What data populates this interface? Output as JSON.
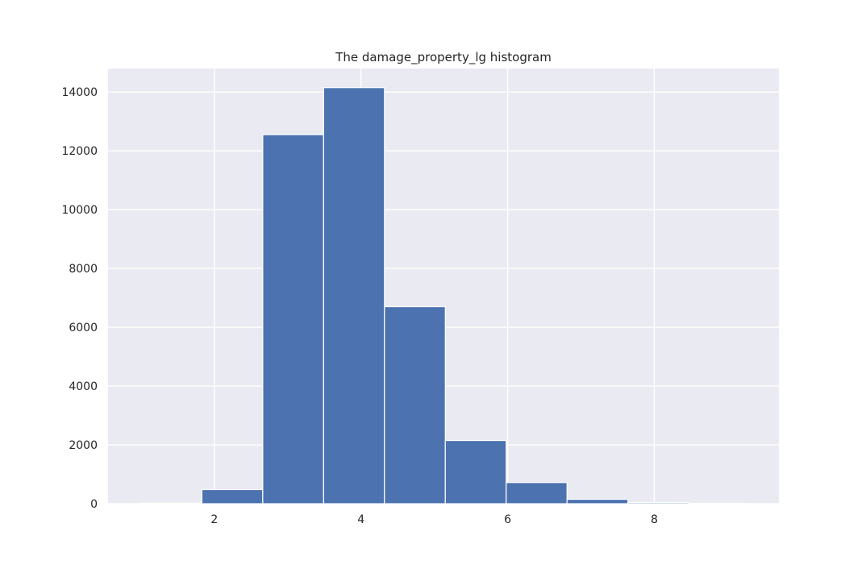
{
  "chart_data": {
    "type": "bar",
    "title": "The damage_property_lg histogram",
    "xlabel": "",
    "ylabel": "",
    "bins": [
      {
        "x0": 1.0,
        "x1": 1.83,
        "count": 20
      },
      {
        "x0": 1.83,
        "x1": 2.66,
        "count": 480
      },
      {
        "x0": 2.66,
        "x1": 3.49,
        "count": 12550
      },
      {
        "x0": 3.49,
        "x1": 4.32,
        "count": 14150
      },
      {
        "x0": 4.32,
        "x1": 5.15,
        "count": 6700
      },
      {
        "x0": 5.15,
        "x1": 5.98,
        "count": 2150
      },
      {
        "x0": 5.98,
        "x1": 6.81,
        "count": 720
      },
      {
        "x0": 6.81,
        "x1": 7.64,
        "count": 150
      },
      {
        "x0": 7.64,
        "x1": 8.47,
        "count": 40
      },
      {
        "x0": 8.47,
        "x1": 9.3,
        "count": 10
      }
    ],
    "xlim": [
      0.55,
      9.7
    ],
    "ylim": [
      0,
      14800
    ],
    "xticks": [
      2,
      4,
      6,
      8
    ],
    "yticks": [
      0,
      2000,
      4000,
      6000,
      8000,
      10000,
      12000,
      14000
    ],
    "grid": true,
    "colors": {
      "bar": "#4c72b0",
      "background": "#eaeaf2",
      "grid": "#ffffff"
    }
  }
}
